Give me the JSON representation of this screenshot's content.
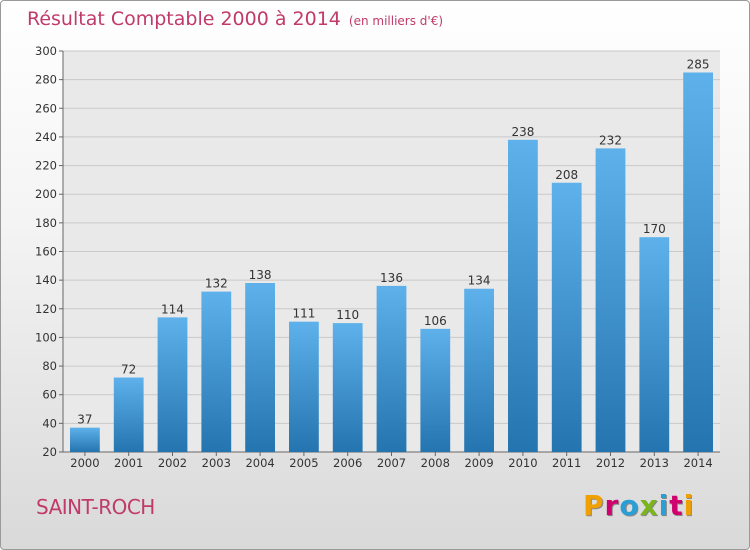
{
  "header": {
    "title": "Résultat Comptable 2000 à 2014",
    "subtitle": "(en milliers d'€)"
  },
  "footer": {
    "commune": "SAINT-ROCH",
    "brand": "Proxiti",
    "brand_colors": [
      "#f0a000",
      "#d0006f",
      "#2a9fd6",
      "#7ab51d",
      "#2a9fd6",
      "#d0006f",
      "#f0a000"
    ]
  },
  "colors": {
    "title": "#c03a6a",
    "bar_top": "#5eb1ea",
    "bar_bottom": "#2474b0",
    "grid": "#c9c9c9",
    "plot_bg": "#e9e9e9"
  },
  "chart_data": {
    "type": "bar",
    "title": "Résultat Comptable 2000 à 2014",
    "xlabel": "",
    "ylabel": "",
    "categories": [
      "2000",
      "2001",
      "2002",
      "2003",
      "2004",
      "2005",
      "2006",
      "2007",
      "2008",
      "2009",
      "2010",
      "2011",
      "2012",
      "2013",
      "2014"
    ],
    "values": [
      37,
      72,
      114,
      132,
      138,
      111,
      110,
      136,
      106,
      134,
      238,
      208,
      232,
      170,
      285
    ],
    "ylim": [
      20,
      300
    ],
    "yticks": [
      20,
      40,
      60,
      80,
      100,
      120,
      140,
      160,
      180,
      200,
      220,
      240,
      260,
      280,
      300
    ],
    "grid": true
  }
}
